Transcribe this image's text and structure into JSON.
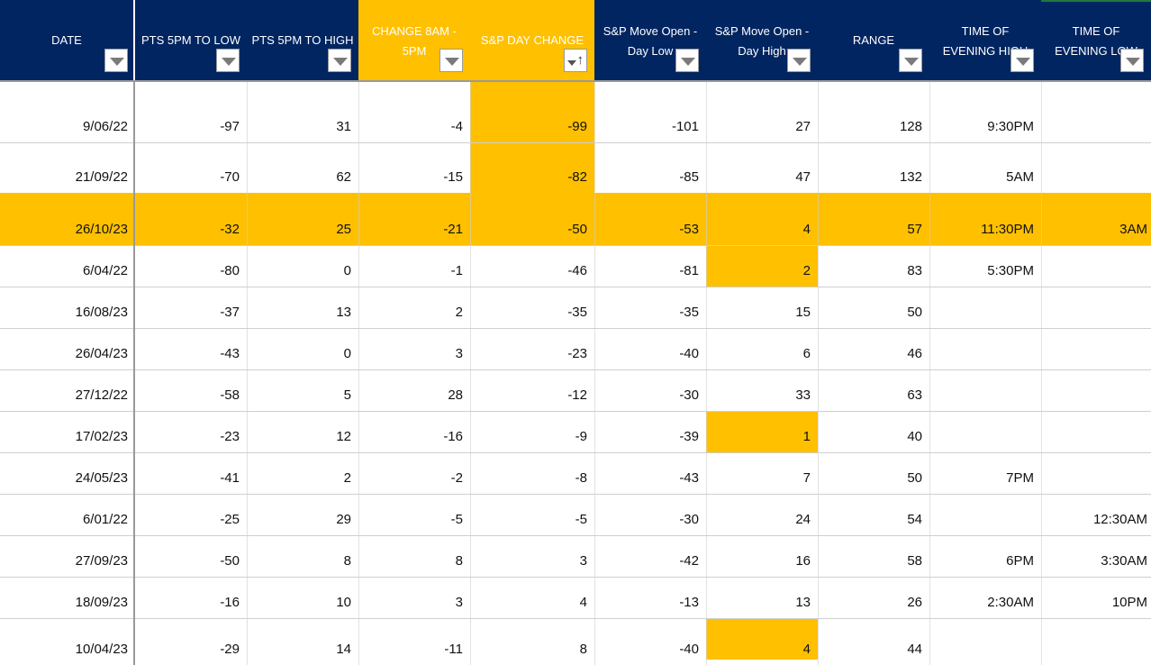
{
  "colors": {
    "header_bg": "#002561",
    "highlight": "#ffc000",
    "header_text": "#ffffff"
  },
  "columns": [
    {
      "key": "date",
      "label": "DATE",
      "filter": "filter-dropdown-icon"
    },
    {
      "key": "pts_low",
      "label": "PTS 5PM TO LOW",
      "filter": "filter-dropdown-icon"
    },
    {
      "key": "pts_high",
      "label": "PTS 5PM TO HIGH",
      "filter": "filter-dropdown-icon"
    },
    {
      "key": "change",
      "label": "CHANGE 8AM -\n5PM",
      "filter": "filter-dropdown-icon"
    },
    {
      "key": "sp_day",
      "label": "S&P DAY CHANGE",
      "filter": "sort-ascending-filter-icon",
      "sort_indicator": "↑"
    },
    {
      "key": "open_low",
      "label": "S&P Move Open -\nDay Low",
      "filter": "filter-dropdown-icon"
    },
    {
      "key": "open_high",
      "label": "S&P Move Open -\nDay High",
      "filter": "filter-dropdown-icon"
    },
    {
      "key": "range",
      "label": "RANGE",
      "filter": "filter-dropdown-icon"
    },
    {
      "key": "eve_high",
      "label": "TIME OF\nEVENING HIGH",
      "filter": "filter-dropdown-icon"
    },
    {
      "key": "eve_low",
      "label": "TIME OF\nEVENING LOW",
      "filter": "filter-dropdown-icon"
    }
  ],
  "rows": [
    [
      "9/06/22",
      "-97",
      "31",
      "-4",
      "-99",
      "-101",
      "27",
      "128",
      "9:30PM",
      ""
    ],
    [
      "21/09/22",
      "-70",
      "62",
      "-15",
      "-82",
      "-85",
      "47",
      "132",
      "5AM",
      ""
    ],
    [
      "26/10/23",
      "-32",
      "25",
      "-21",
      "-50",
      "-53",
      "4",
      "57",
      "11:30PM",
      "3AM"
    ],
    [
      "6/04/22",
      "-80",
      "0",
      "-1",
      "-46",
      "-81",
      "2",
      "83",
      "5:30PM",
      ""
    ],
    [
      "16/08/23",
      "-37",
      "13",
      "2",
      "-35",
      "-35",
      "15",
      "50",
      "",
      ""
    ],
    [
      "26/04/23",
      "-43",
      "0",
      "3",
      "-23",
      "-40",
      "6",
      "46",
      "",
      ""
    ],
    [
      "27/12/22",
      "-58",
      "5",
      "28",
      "-12",
      "-30",
      "33",
      "63",
      "",
      ""
    ],
    [
      "17/02/23",
      "-23",
      "12",
      "-16",
      "-9",
      "-39",
      "1",
      "40",
      "",
      ""
    ],
    [
      "24/05/23",
      "-41",
      "2",
      "-2",
      "-8",
      "-43",
      "7",
      "50",
      "7PM",
      ""
    ],
    [
      "6/01/22",
      "-25",
      "29",
      "-5",
      "-5",
      "-30",
      "24",
      "54",
      "",
      "12:30AM"
    ],
    [
      "27/09/23",
      "-50",
      "8",
      "8",
      "3",
      "-42",
      "16",
      "58",
      "6PM",
      "3:30AM"
    ],
    [
      "18/09/23",
      "-16",
      "10",
      "3",
      "4",
      "-13",
      "13",
      "26",
      "2:30AM",
      "10PM"
    ],
    [
      "10/04/23",
      "-29",
      "14",
      "-11",
      "8",
      "-40",
      "4",
      "44",
      "",
      ""
    ]
  ]
}
